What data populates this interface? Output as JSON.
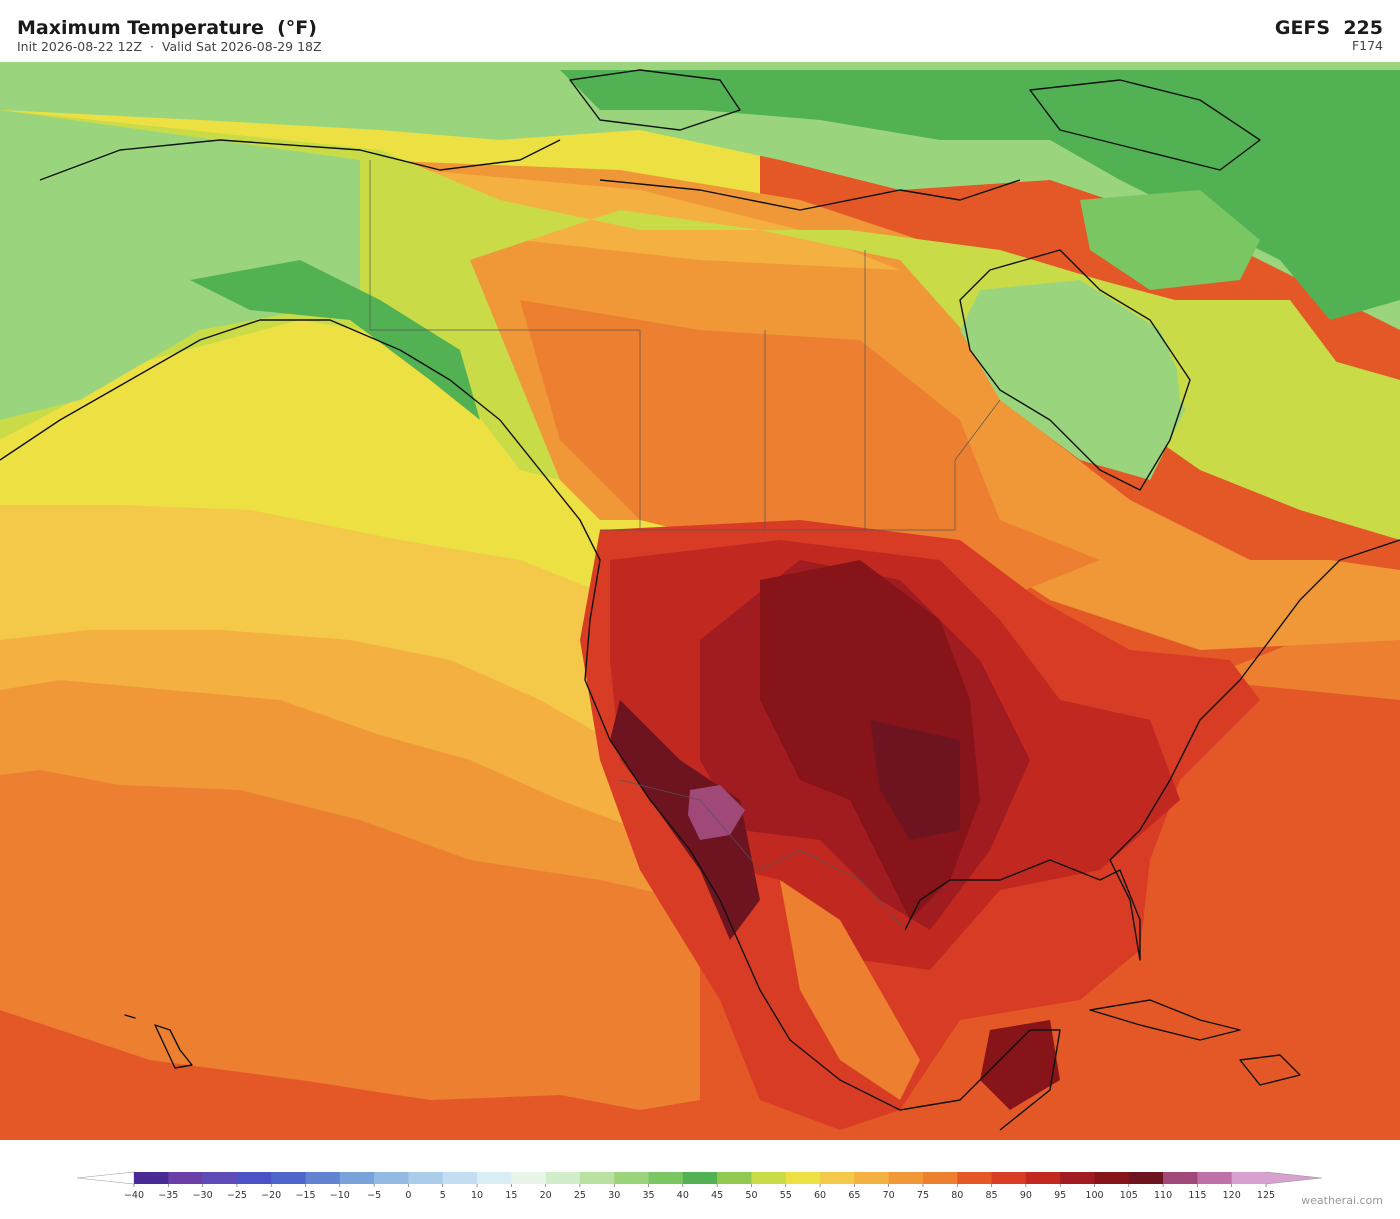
{
  "header": {
    "title": "Maximum Temperature  (°F)",
    "subtitle": "Init 2026-08-22 12Z  ·  Valid Sat 2026-08-29 18Z",
    "model": "GEFS  225",
    "forecast_hour": "F174"
  },
  "colorbar": {
    "ticks": [
      {
        "value": -40,
        "label": "−40"
      },
      {
        "value": -35,
        "label": "−35"
      },
      {
        "value": -30,
        "label": "−30"
      },
      {
        "value": -25,
        "label": "−25"
      },
      {
        "value": -20,
        "label": "−20"
      },
      {
        "value": -15,
        "label": "−15"
      },
      {
        "value": -10,
        "label": "−10"
      },
      {
        "value": -5,
        "label": "−5"
      },
      0,
      5,
      10,
      15,
      20,
      25,
      30,
      35,
      40,
      45,
      50,
      55,
      60,
      65,
      70,
      75,
      80,
      85,
      90,
      95,
      100,
      105,
      110,
      115,
      120,
      125
    ],
    "colors": [
      "#4a2a94",
      "#6a3fa8",
      "#5e4bb8",
      "#4a52c6",
      "#4e66cc",
      "#6282d2",
      "#7aa2da",
      "#92bae2",
      "#aacde9",
      "#c2def0",
      "#d9edf3",
      "#e9f5e9",
      "#d2edc9",
      "#b9e1a1",
      "#9ad57d",
      "#79c662",
      "#52b152",
      "#91c950",
      "#c9dc48",
      "#ede042",
      "#f4c848",
      "#f4b040",
      "#f09838",
      "#ec8030",
      "#e45828",
      "#d83c24",
      "#c02820",
      "#a01c20",
      "#861418",
      "#6e1420",
      "#a04878",
      "#c070a8",
      "#d8a0d0"
    ],
    "under_color": "#ffffff",
    "over_color": "#d8a0d0"
  },
  "credit": "weatherai.com"
}
